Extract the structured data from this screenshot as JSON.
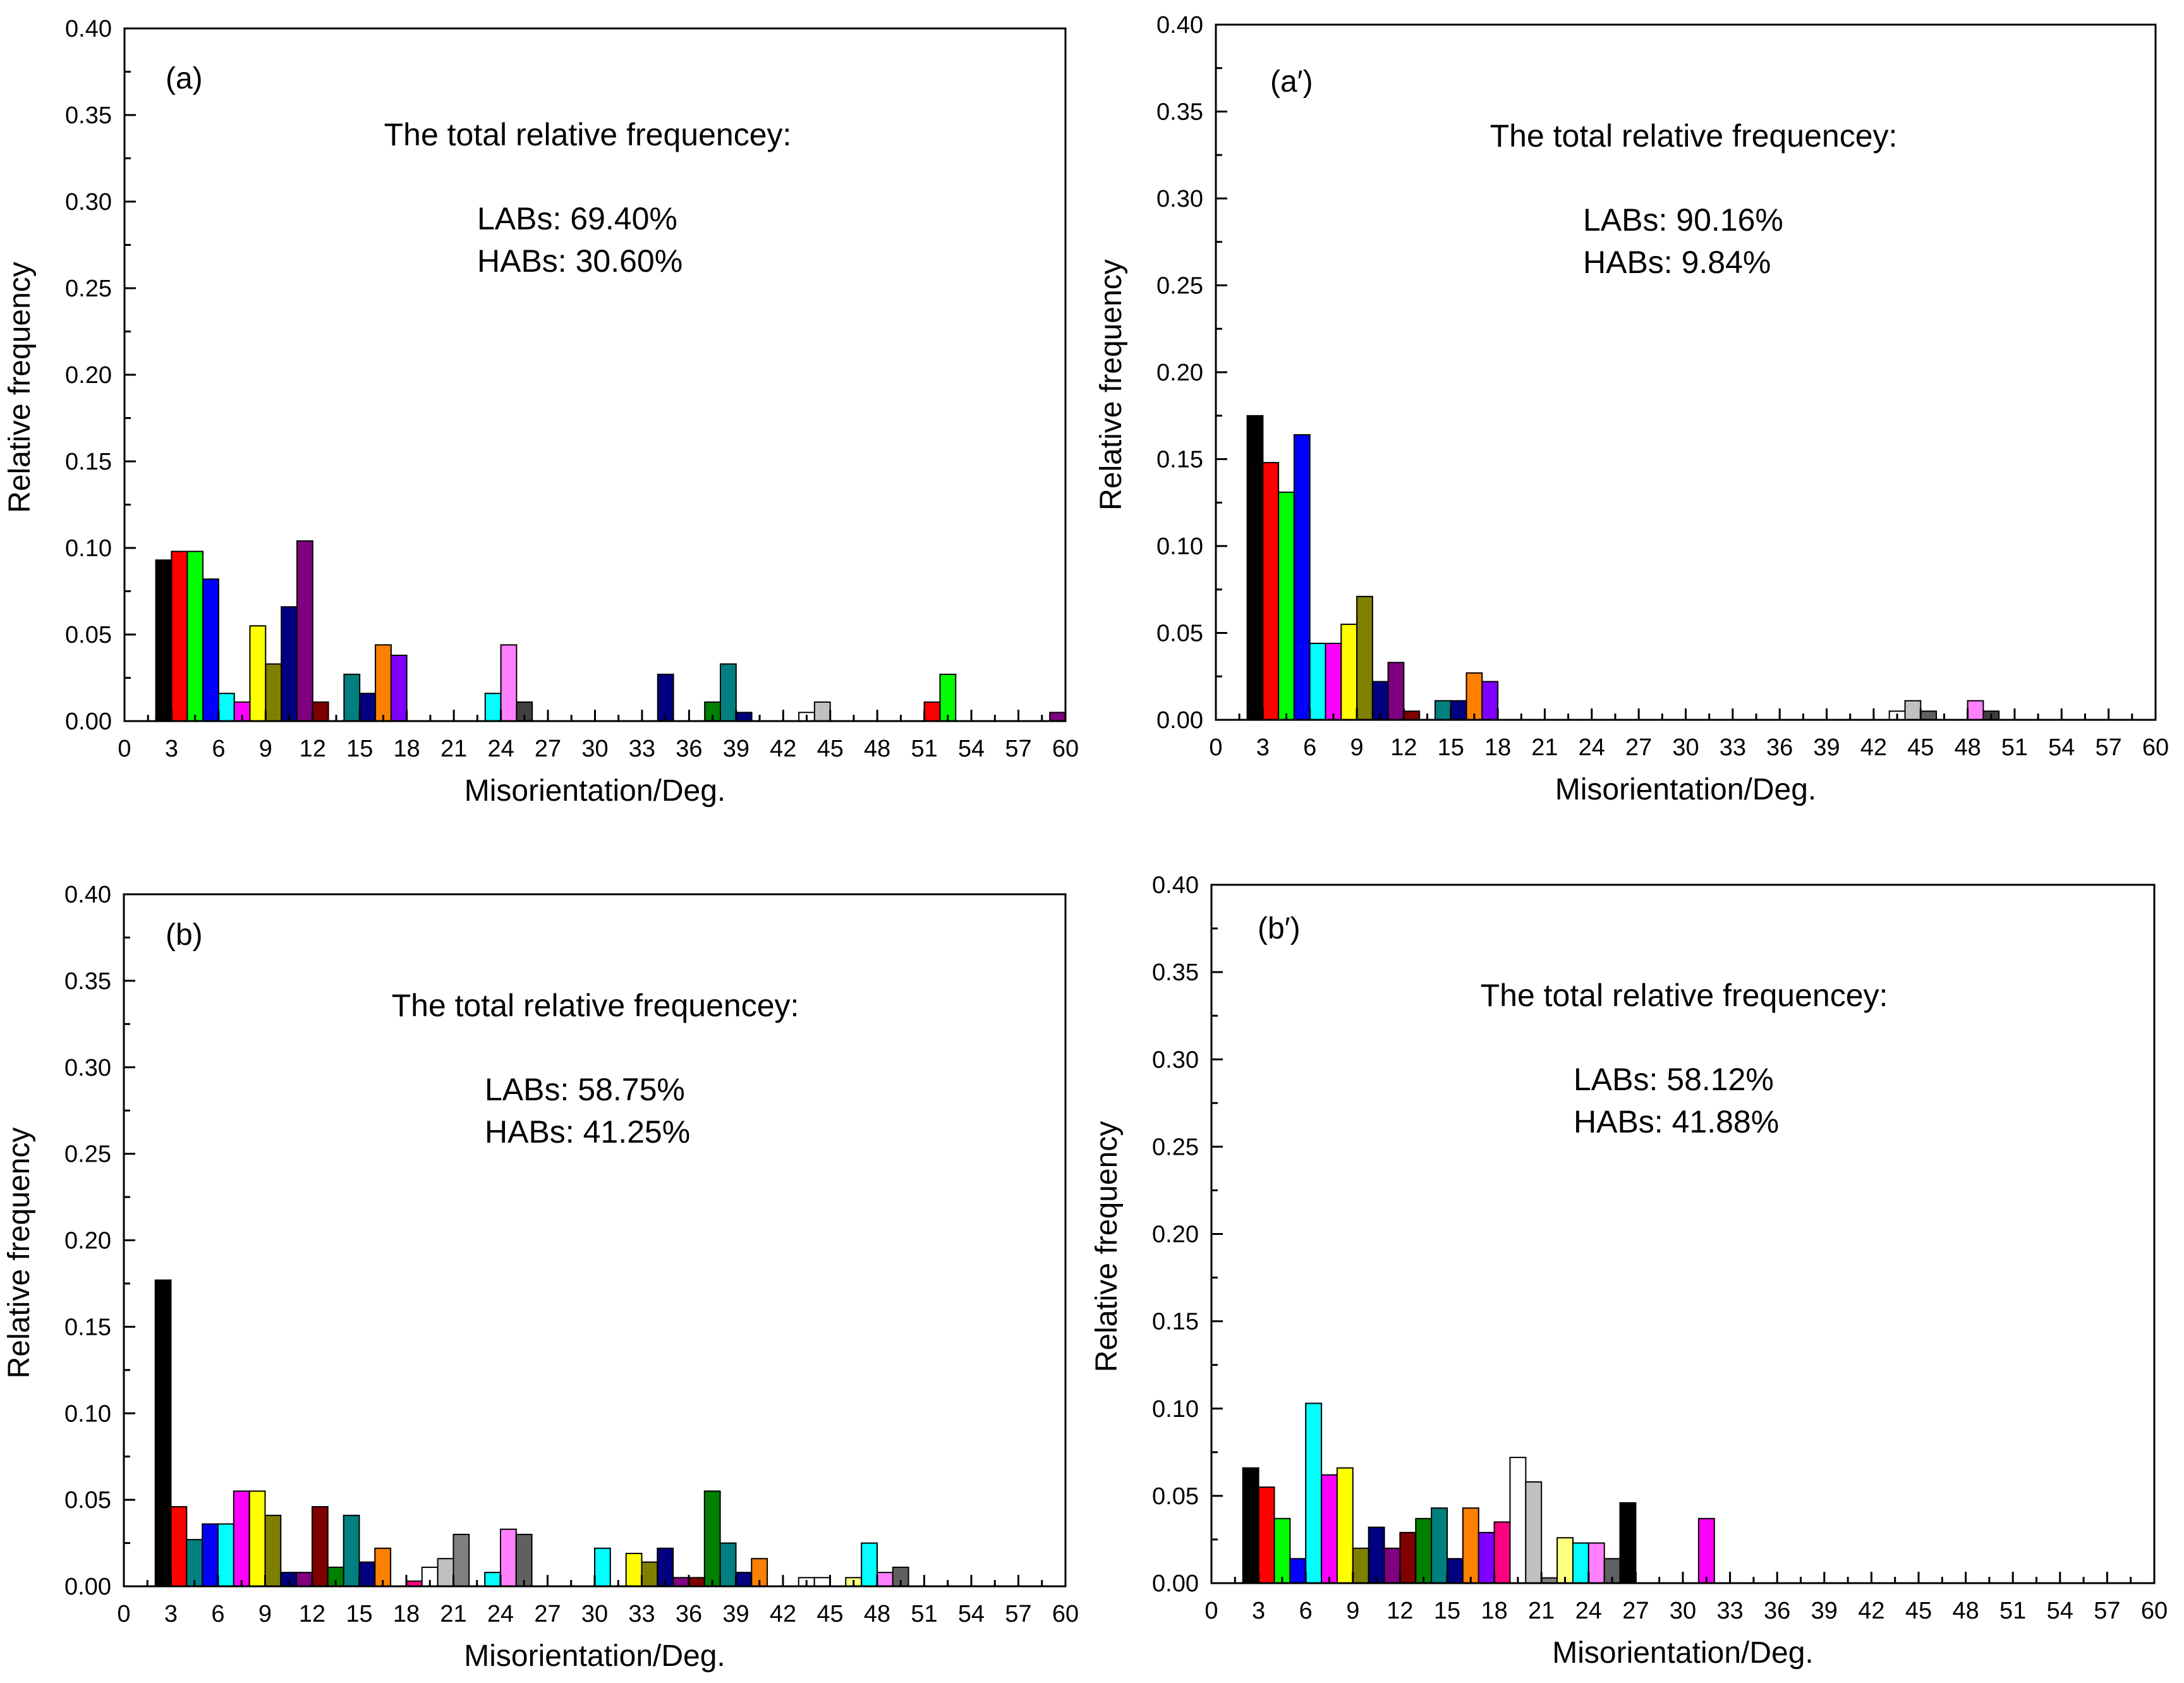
{
  "chart_data": [
    {
      "type": "bar",
      "panel_label": "(a)",
      "xlabel": "Misorientation/Deg.",
      "ylabel": "Relative frequency",
      "xlim": [
        0,
        60
      ],
      "ylim": [
        0,
        0.4
      ],
      "x_ticks": [
        "0",
        "3",
        "6",
        "9",
        "12",
        "15",
        "18",
        "21",
        "24",
        "27",
        "30",
        "33",
        "36",
        "39",
        "42",
        "45",
        "48",
        "51",
        "54",
        "57",
        "60"
      ],
      "y_ticks": [
        "0.00",
        "0.05",
        "0.10",
        "0.15",
        "0.20",
        "0.25",
        "0.30",
        "0.35",
        "0.40"
      ],
      "legend_position": "none",
      "grid": false,
      "annotations": [
        "The total relative frequencey:",
        "LABs: 69.40%",
        "HABs: 30.60%"
      ],
      "bars": [
        {
          "x": 2.5,
          "value": 0.093,
          "color": "#000000"
        },
        {
          "x": 3.5,
          "value": 0.098,
          "color": "#ff0000"
        },
        {
          "x": 4.5,
          "value": 0.098,
          "color": "#00ff00"
        },
        {
          "x": 5.5,
          "value": 0.082,
          "color": "#0000ff"
        },
        {
          "x": 6.5,
          "value": 0.016,
          "color": "#00ffff"
        },
        {
          "x": 7.5,
          "value": 0.011,
          "color": "#ff00ff"
        },
        {
          "x": 8.5,
          "value": 0.055,
          "color": "#ffff00"
        },
        {
          "x": 9.5,
          "value": 0.033,
          "color": "#808000"
        },
        {
          "x": 10.5,
          "value": 0.066,
          "color": "#000080"
        },
        {
          "x": 11.5,
          "value": 0.104,
          "color": "#800080"
        },
        {
          "x": 12.5,
          "value": 0.011,
          "color": "#800000"
        },
        {
          "x": 14.5,
          "value": 0.027,
          "color": "#008080"
        },
        {
          "x": 15.5,
          "value": 0.016,
          "color": "#000080"
        },
        {
          "x": 16.5,
          "value": 0.044,
          "color": "#ff8000"
        },
        {
          "x": 17.5,
          "value": 0.038,
          "color": "#8000ff"
        },
        {
          "x": 23.5,
          "value": 0.016,
          "color": "#00ffff"
        },
        {
          "x": 24.5,
          "value": 0.044,
          "color": "#ff80ff"
        },
        {
          "x": 25.5,
          "value": 0.011,
          "color": "#404040"
        },
        {
          "x": 34.5,
          "value": 0.027,
          "color": "#000080"
        },
        {
          "x": 37.5,
          "value": 0.011,
          "color": "#008000"
        },
        {
          "x": 38.5,
          "value": 0.033,
          "color": "#008080"
        },
        {
          "x": 39.5,
          "value": 0.005,
          "color": "#000080"
        },
        {
          "x": 43.5,
          "value": 0.005,
          "color": "#ffffff"
        },
        {
          "x": 44.5,
          "value": 0.011,
          "color": "#c0c0c0"
        },
        {
          "x": 51.5,
          "value": 0.011,
          "color": "#ff0000"
        },
        {
          "x": 52.5,
          "value": 0.027,
          "color": "#00ff00"
        },
        {
          "x": 59.5,
          "value": 0.005,
          "color": "#800080"
        }
      ]
    },
    {
      "type": "bar",
      "panel_label": "(a′)",
      "xlabel": "Misorientation/Deg.",
      "ylabel": "Relative frequency",
      "xlim": [
        0,
        60
      ],
      "ylim": [
        0,
        0.4
      ],
      "x_ticks": [
        "0",
        "3",
        "6",
        "9",
        "12",
        "15",
        "18",
        "21",
        "24",
        "27",
        "30",
        "33",
        "36",
        "39",
        "42",
        "45",
        "48",
        "51",
        "54",
        "57",
        "60"
      ],
      "y_ticks": [
        "0.00",
        "0.05",
        "0.10",
        "0.15",
        "0.20",
        "0.25",
        "0.30",
        "0.35",
        "0.40"
      ],
      "legend_position": "none",
      "grid": false,
      "annotations": [
        "The total relative frequencey:",
        "LABs: 90.16%",
        "HABs: 9.84%"
      ],
      "bars": [
        {
          "x": 2.5,
          "value": 0.175,
          "color": "#000000"
        },
        {
          "x": 3.5,
          "value": 0.148,
          "color": "#ff0000"
        },
        {
          "x": 4.5,
          "value": 0.131,
          "color": "#00ff00"
        },
        {
          "x": 5.5,
          "value": 0.164,
          "color": "#0000ff"
        },
        {
          "x": 6.5,
          "value": 0.044,
          "color": "#00ffff"
        },
        {
          "x": 7.5,
          "value": 0.044,
          "color": "#ff00ff"
        },
        {
          "x": 8.5,
          "value": 0.055,
          "color": "#ffff00"
        },
        {
          "x": 9.5,
          "value": 0.071,
          "color": "#808000"
        },
        {
          "x": 10.5,
          "value": 0.022,
          "color": "#000080"
        },
        {
          "x": 11.5,
          "value": 0.033,
          "color": "#800080"
        },
        {
          "x": 12.5,
          "value": 0.005,
          "color": "#800000"
        },
        {
          "x": 14.5,
          "value": 0.011,
          "color": "#008080"
        },
        {
          "x": 15.5,
          "value": 0.011,
          "color": "#000080"
        },
        {
          "x": 16.5,
          "value": 0.027,
          "color": "#ff8000"
        },
        {
          "x": 17.5,
          "value": 0.022,
          "color": "#8000ff"
        },
        {
          "x": 43.5,
          "value": 0.005,
          "color": "#ffffff"
        },
        {
          "x": 44.5,
          "value": 0.011,
          "color": "#c0c0c0"
        },
        {
          "x": 45.5,
          "value": 0.005,
          "color": "#606060"
        },
        {
          "x": 48.5,
          "value": 0.011,
          "color": "#ff80ff"
        },
        {
          "x": 49.5,
          "value": 0.005,
          "color": "#404040"
        }
      ]
    },
    {
      "type": "bar",
      "panel_label": "(b)",
      "xlabel": "Misorientation/Deg.",
      "ylabel": "Relative frequency",
      "xlim": [
        0,
        60
      ],
      "ylim": [
        0,
        0.4
      ],
      "x_ticks": [
        "0",
        "3",
        "6",
        "9",
        "12",
        "15",
        "18",
        "21",
        "24",
        "27",
        "30",
        "33",
        "36",
        "39",
        "42",
        "45",
        "48",
        "51",
        "54",
        "57",
        "60"
      ],
      "y_ticks": [
        "0.00",
        "0.05",
        "0.10",
        "0.15",
        "0.20",
        "0.25",
        "0.30",
        "0.35",
        "0.40"
      ],
      "legend_position": "none",
      "grid": false,
      "annotations": [
        "The total relative frequencey:",
        "LABs: 58.75%",
        "HABs: 41.25%"
      ],
      "bars": [
        {
          "x": 2.5,
          "value": 0.177,
          "color": "#000000"
        },
        {
          "x": 3.5,
          "value": 0.046,
          "color": "#ff0000"
        },
        {
          "x": 4.5,
          "value": 0.027,
          "color": "#008080"
        },
        {
          "x": 5.5,
          "value": 0.036,
          "color": "#0000ff"
        },
        {
          "x": 6.5,
          "value": 0.036,
          "color": "#00ffff"
        },
        {
          "x": 7.5,
          "value": 0.055,
          "color": "#ff00ff"
        },
        {
          "x": 8.5,
          "value": 0.055,
          "color": "#ffff00"
        },
        {
          "x": 9.5,
          "value": 0.041,
          "color": "#808000"
        },
        {
          "x": 10.5,
          "value": 0.008,
          "color": "#000080"
        },
        {
          "x": 11.5,
          "value": 0.008,
          "color": "#800080"
        },
        {
          "x": 12.5,
          "value": 0.046,
          "color": "#800000"
        },
        {
          "x": 13.5,
          "value": 0.011,
          "color": "#008000"
        },
        {
          "x": 14.5,
          "value": 0.041,
          "color": "#008080"
        },
        {
          "x": 15.5,
          "value": 0.014,
          "color": "#000080"
        },
        {
          "x": 16.5,
          "value": 0.022,
          "color": "#ff8000"
        },
        {
          "x": 18.5,
          "value": 0.003,
          "color": "#ff0080"
        },
        {
          "x": 19.5,
          "value": 0.011,
          "color": "#ffffff"
        },
        {
          "x": 20.5,
          "value": 0.016,
          "color": "#c0c0c0"
        },
        {
          "x": 21.5,
          "value": 0.03,
          "color": "#808080"
        },
        {
          "x": 23.5,
          "value": 0.008,
          "color": "#00ffff"
        },
        {
          "x": 24.5,
          "value": 0.033,
          "color": "#ff80ff"
        },
        {
          "x": 25.5,
          "value": 0.03,
          "color": "#606060"
        },
        {
          "x": 30.5,
          "value": 0.022,
          "color": "#00ffff"
        },
        {
          "x": 32.5,
          "value": 0.019,
          "color": "#ffff00"
        },
        {
          "x": 33.5,
          "value": 0.014,
          "color": "#808000"
        },
        {
          "x": 34.5,
          "value": 0.022,
          "color": "#000080"
        },
        {
          "x": 35.5,
          "value": 0.005,
          "color": "#800080"
        },
        {
          "x": 36.5,
          "value": 0.005,
          "color": "#800000"
        },
        {
          "x": 37.5,
          "value": 0.055,
          "color": "#008000"
        },
        {
          "x": 38.5,
          "value": 0.025,
          "color": "#008080"
        },
        {
          "x": 39.5,
          "value": 0.008,
          "color": "#000080"
        },
        {
          "x": 40.5,
          "value": 0.016,
          "color": "#ff8000"
        },
        {
          "x": 43.5,
          "value": 0.005,
          "color": "#ffffff"
        },
        {
          "x": 44.5,
          "value": 0.005,
          "color": "#ffffff"
        },
        {
          "x": 46.5,
          "value": 0.005,
          "color": "#ffff80"
        },
        {
          "x": 47.5,
          "value": 0.025,
          "color": "#00ffff"
        },
        {
          "x": 48.5,
          "value": 0.008,
          "color": "#ff80ff"
        },
        {
          "x": 49.5,
          "value": 0.011,
          "color": "#606060"
        }
      ]
    },
    {
      "type": "bar",
      "panel_label": "(b′)",
      "xlabel": "Misorientation/Deg.",
      "ylabel": "Relative frequency",
      "xlim": [
        0,
        60
      ],
      "ylim": [
        0,
        0.4
      ],
      "x_ticks": [
        "0",
        "3",
        "6",
        "9",
        "12",
        "15",
        "18",
        "21",
        "24",
        "27",
        "30",
        "33",
        "36",
        "39",
        "42",
        "45",
        "48",
        "51",
        "54",
        "57",
        "60"
      ],
      "y_ticks": [
        "0.00",
        "0.05",
        "0.10",
        "0.15",
        "0.20",
        "0.25",
        "0.30",
        "0.35",
        "0.40"
      ],
      "legend_position": "none",
      "grid": false,
      "annotations": [
        "The total relative frequencey:",
        "LABs: 58.12%",
        "HABs: 41.88%"
      ],
      "bars": [
        {
          "x": 2.5,
          "value": 0.066,
          "color": "#000000"
        },
        {
          "x": 3.5,
          "value": 0.055,
          "color": "#ff0000"
        },
        {
          "x": 4.5,
          "value": 0.037,
          "color": "#00ff00"
        },
        {
          "x": 5.5,
          "value": 0.014,
          "color": "#0000ff"
        },
        {
          "x": 6.5,
          "value": 0.103,
          "color": "#00ffff"
        },
        {
          "x": 7.5,
          "value": 0.062,
          "color": "#ff00ff"
        },
        {
          "x": 8.5,
          "value": 0.066,
          "color": "#ffff00"
        },
        {
          "x": 9.5,
          "value": 0.02,
          "color": "#808000"
        },
        {
          "x": 10.5,
          "value": 0.032,
          "color": "#000080"
        },
        {
          "x": 11.5,
          "value": 0.02,
          "color": "#800080"
        },
        {
          "x": 12.5,
          "value": 0.029,
          "color": "#800000"
        },
        {
          "x": 13.5,
          "value": 0.037,
          "color": "#008000"
        },
        {
          "x": 14.5,
          "value": 0.043,
          "color": "#008080"
        },
        {
          "x": 15.5,
          "value": 0.014,
          "color": "#000080"
        },
        {
          "x": 16.5,
          "value": 0.043,
          "color": "#ff8000"
        },
        {
          "x": 17.5,
          "value": 0.029,
          "color": "#8000ff"
        },
        {
          "x": 18.5,
          "value": 0.035,
          "color": "#ff0080"
        },
        {
          "x": 19.5,
          "value": 0.072,
          "color": "#ffffff"
        },
        {
          "x": 20.5,
          "value": 0.058,
          "color": "#c0c0c0"
        },
        {
          "x": 21.5,
          "value": 0.003,
          "color": "#808080"
        },
        {
          "x": 22.5,
          "value": 0.026,
          "color": "#ffff80"
        },
        {
          "x": 23.5,
          "value": 0.023,
          "color": "#00ffff"
        },
        {
          "x": 24.5,
          "value": 0.023,
          "color": "#ff80ff"
        },
        {
          "x": 25.5,
          "value": 0.014,
          "color": "#606060"
        },
        {
          "x": 26.5,
          "value": 0.046,
          "color": "#000000"
        },
        {
          "x": 31.5,
          "value": 0.037,
          "color": "#ff00ff"
        }
      ]
    }
  ]
}
